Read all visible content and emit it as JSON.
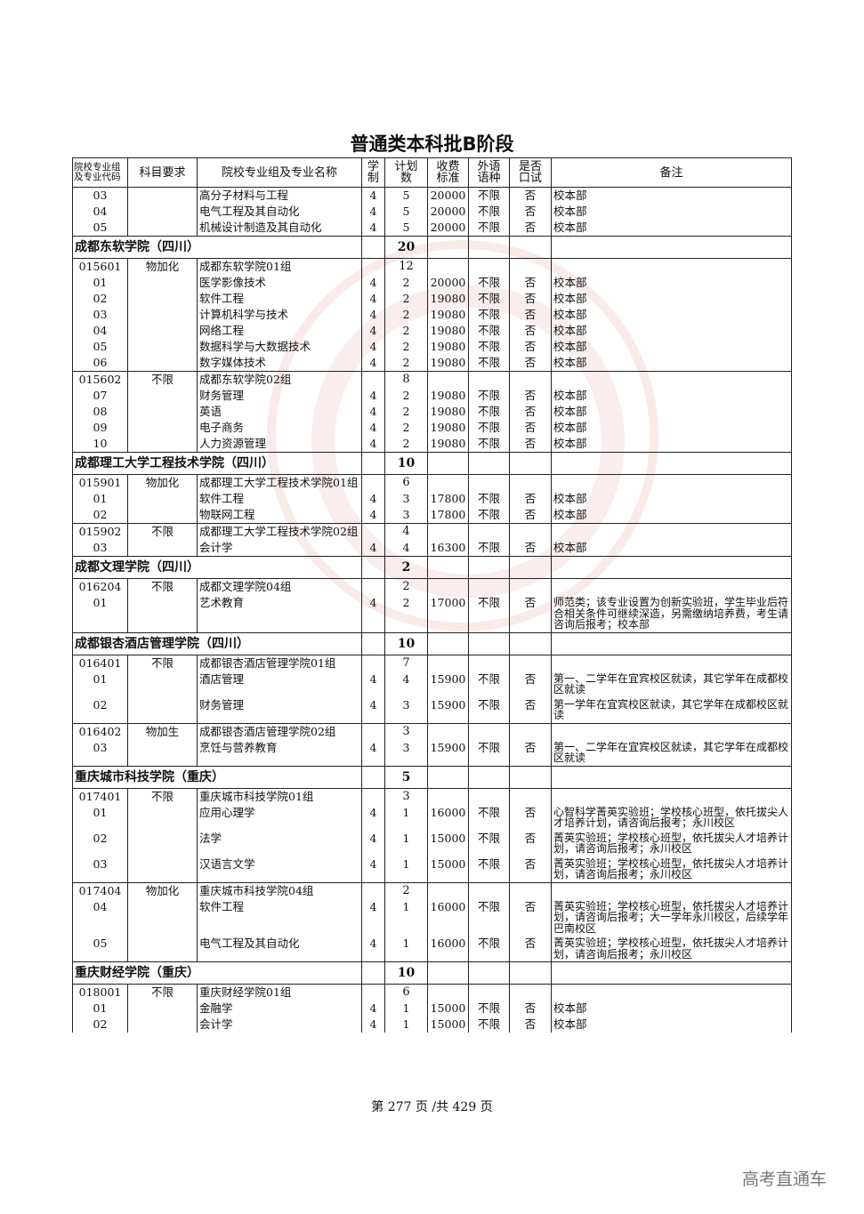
{
  "title": "普通类本科批B阶段",
  "headers": [
    "院校专业组及专业代码",
    "科目要求",
    "院校专业组及专业名称",
    "学制",
    "计划数",
    "收费标准",
    "外语语种",
    "是否口试",
    "备注"
  ],
  "rows": [
    {
      "type": "major",
      "code": "03",
      "name": "高分子材料与工程",
      "years": "4",
      "plan": "5",
      "fee": "20000",
      "lang": "不限",
      "oral": "否",
      "note": "校本部",
      "first": true
    },
    {
      "type": "major",
      "code": "04",
      "name": "电气工程及其自动化",
      "years": "4",
      "plan": "5",
      "fee": "20000",
      "lang": "不限",
      "oral": "否",
      "note": "校本部"
    },
    {
      "type": "major",
      "code": "05",
      "name": "机械设计制造及其自动化",
      "years": "4",
      "plan": "5",
      "fee": "20000",
      "lang": "不限",
      "oral": "否",
      "note": "校本部"
    },
    {
      "type": "school",
      "name": "成都东软学院（四川）",
      "plan": "20"
    },
    {
      "type": "group",
      "code": "015601",
      "subject": "物加化",
      "name": "成都东软学院01组",
      "plan": "12"
    },
    {
      "type": "major",
      "code": "01",
      "name": "医学影像技术",
      "years": "4",
      "plan": "2",
      "fee": "20000",
      "lang": "不限",
      "oral": "否",
      "note": "校本部"
    },
    {
      "type": "major",
      "code": "02",
      "name": "软件工程",
      "years": "4",
      "plan": "2",
      "fee": "19080",
      "lang": "不限",
      "oral": "否",
      "note": "校本部"
    },
    {
      "type": "major",
      "code": "03",
      "name": "计算机科学与技术",
      "years": "4",
      "plan": "2",
      "fee": "19080",
      "lang": "不限",
      "oral": "否",
      "note": "校本部"
    },
    {
      "type": "major",
      "code": "04",
      "name": "网络工程",
      "years": "4",
      "plan": "2",
      "fee": "19080",
      "lang": "不限",
      "oral": "否",
      "note": "校本部"
    },
    {
      "type": "major",
      "code": "05",
      "name": "数据科学与大数据技术",
      "years": "4",
      "plan": "2",
      "fee": "19080",
      "lang": "不限",
      "oral": "否",
      "note": "校本部"
    },
    {
      "type": "major",
      "code": "06",
      "name": "数字媒体技术",
      "years": "4",
      "plan": "2",
      "fee": "19080",
      "lang": "不限",
      "oral": "否",
      "note": "校本部"
    },
    {
      "type": "group",
      "code": "015602",
      "subject": "不限",
      "name": "成都东软学院02组",
      "plan": "8"
    },
    {
      "type": "major",
      "code": "07",
      "name": "财务管理",
      "years": "4",
      "plan": "2",
      "fee": "19080",
      "lang": "不限",
      "oral": "否",
      "note": "校本部"
    },
    {
      "type": "major",
      "code": "08",
      "name": "英语",
      "years": "4",
      "plan": "2",
      "fee": "19080",
      "lang": "不限",
      "oral": "否",
      "note": "校本部"
    },
    {
      "type": "major",
      "code": "09",
      "name": "电子商务",
      "years": "4",
      "plan": "2",
      "fee": "19080",
      "lang": "不限",
      "oral": "否",
      "note": "校本部"
    },
    {
      "type": "major",
      "code": "10",
      "name": "人力资源管理",
      "years": "4",
      "plan": "2",
      "fee": "19080",
      "lang": "不限",
      "oral": "否",
      "note": "校本部"
    },
    {
      "type": "school",
      "name": "成都理工大学工程技术学院（四川）",
      "plan": "10"
    },
    {
      "type": "group",
      "code": "015901",
      "subject": "物加化",
      "name": "成都理工大学工程技术学院01组",
      "plan": "6"
    },
    {
      "type": "major",
      "code": "01",
      "name": "软件工程",
      "years": "4",
      "plan": "3",
      "fee": "17800",
      "lang": "不限",
      "oral": "否",
      "note": "校本部"
    },
    {
      "type": "major",
      "code": "02",
      "name": "物联网工程",
      "years": "4",
      "plan": "3",
      "fee": "17800",
      "lang": "不限",
      "oral": "否",
      "note": "校本部"
    },
    {
      "type": "group",
      "code": "015902",
      "subject": "不限",
      "name": "成都理工大学工程技术学院02组",
      "plan": "4"
    },
    {
      "type": "major",
      "code": "03",
      "name": "会计学",
      "years": "4",
      "plan": "4",
      "fee": "16300",
      "lang": "不限",
      "oral": "否",
      "note": "校本部"
    },
    {
      "type": "school",
      "name": "成都文理学院（四川）",
      "plan": "2"
    },
    {
      "type": "group",
      "code": "016204",
      "subject": "不限",
      "name": "成都文理学院04组",
      "plan": "2"
    },
    {
      "type": "major",
      "code": "01",
      "name": "艺术教育",
      "years": "4",
      "plan": "2",
      "fee": "17000",
      "lang": "不限",
      "oral": "否",
      "note": "师范类；该专业设置为创新实验班，学生毕业后符合相关条件可继续深造，另需缴纳培养费，考生请咨询后报考；校本部"
    },
    {
      "type": "school",
      "name": "成都银杏酒店管理学院（四川）",
      "plan": "10"
    },
    {
      "type": "group",
      "code": "016401",
      "subject": "不限",
      "name": "成都银杏酒店管理学院01组",
      "plan": "7"
    },
    {
      "type": "major",
      "code": "01",
      "name": "酒店管理",
      "years": "4",
      "plan": "4",
      "fee": "15900",
      "lang": "不限",
      "oral": "否",
      "note": "第一、二学年在宜宾校区就读，其它学年在成都校区就读"
    },
    {
      "type": "major",
      "code": "02",
      "name": "财务管理",
      "years": "4",
      "plan": "3",
      "fee": "15900",
      "lang": "不限",
      "oral": "否",
      "note": "第一学年在宜宾校区就读，其它学年在成都校区就读"
    },
    {
      "type": "group",
      "code": "016402",
      "subject": "物加生",
      "name": "成都银杏酒店管理学院02组",
      "plan": "3"
    },
    {
      "type": "major",
      "code": "03",
      "name": "烹饪与营养教育",
      "years": "4",
      "plan": "3",
      "fee": "15900",
      "lang": "不限",
      "oral": "否",
      "note": "第一、二学年在宜宾校区就读，其它学年在成都校区就读"
    },
    {
      "type": "school",
      "name": "重庆城市科技学院（重庆）",
      "plan": "5"
    },
    {
      "type": "group",
      "code": "017401",
      "subject": "不限",
      "name": "重庆城市科技学院01组",
      "plan": "3"
    },
    {
      "type": "major",
      "code": "01",
      "name": "应用心理学",
      "years": "4",
      "plan": "1",
      "fee": "16000",
      "lang": "不限",
      "oral": "否",
      "note": "心智科学菁英实验班；学校核心班型，依托拔尖人才培养计划，请咨询后报考；永川校区"
    },
    {
      "type": "major",
      "code": "02",
      "name": "法学",
      "years": "4",
      "plan": "1",
      "fee": "15000",
      "lang": "不限",
      "oral": "否",
      "note": "菁英实验班；学校核心班型，依托拔尖人才培养计划，请咨询后报考；永川校区"
    },
    {
      "type": "major",
      "code": "03",
      "name": "汉语言文学",
      "years": "4",
      "plan": "1",
      "fee": "15000",
      "lang": "不限",
      "oral": "否",
      "note": "菁英实验班；学校核心班型，依托拔尖人才培养计划，请咨询后报考；永川校区"
    },
    {
      "type": "group",
      "code": "017404",
      "subject": "物加化",
      "name": "重庆城市科技学院04组",
      "plan": "2"
    },
    {
      "type": "major",
      "code": "04",
      "name": "软件工程",
      "years": "4",
      "plan": "1",
      "fee": "16000",
      "lang": "不限",
      "oral": "否",
      "note": "菁英实验班；学校核心班型，依托拔尖人才培养计划，请咨询后报考；大一学年永川校区，后续学年巴南校区"
    },
    {
      "type": "major",
      "code": "05",
      "name": "电气工程及其自动化",
      "years": "4",
      "plan": "1",
      "fee": "16000",
      "lang": "不限",
      "oral": "否",
      "note": "菁英实验班；学校核心班型，依托拔尖人才培养计划，请咨询后报考；永川校区"
    },
    {
      "type": "school",
      "name": "重庆财经学院（重庆）",
      "plan": "10"
    },
    {
      "type": "group",
      "code": "018001",
      "subject": "不限",
      "name": "重庆财经学院01组",
      "plan": "6"
    },
    {
      "type": "major",
      "code": "01",
      "name": "金融学",
      "years": "4",
      "plan": "1",
      "fee": "15000",
      "lang": "不限",
      "oral": "否",
      "note": "校本部"
    },
    {
      "type": "major",
      "code": "02",
      "name": "会计学",
      "years": "4",
      "plan": "1",
      "fee": "15000",
      "lang": "不限",
      "oral": "否",
      "note": "校本部"
    }
  ],
  "footer": "第 277 页 /共 429 页",
  "brand": "高考直通车",
  "watermark_text": [
    "TAFA",
    "普通高考",
    "2025",
    "天津市教育招生考试院"
  ],
  "colors": {
    "watermark": "#d25050",
    "text": "#111111",
    "brand": "#777777"
  }
}
